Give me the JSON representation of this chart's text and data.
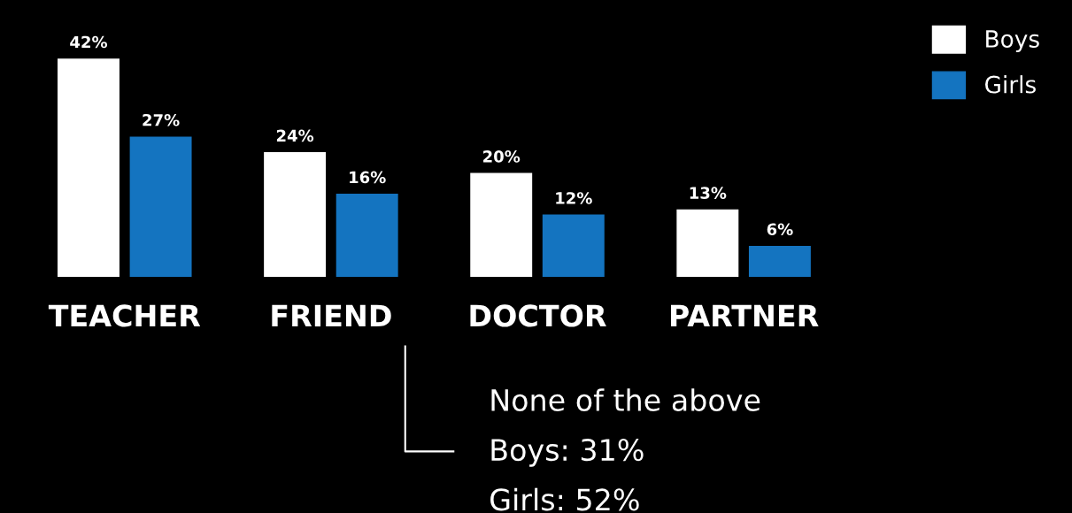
{
  "chart_data": {
    "type": "bar",
    "categories": [
      "TEACHER",
      "FRIEND",
      "DOCTOR",
      "PARTNER"
    ],
    "series": [
      {
        "name": "Boys",
        "color": "#ffffff",
        "values": [
          42,
          24,
          20,
          13
        ],
        "value_labels": [
          "42%",
          "24%",
          "20%",
          "13%"
        ]
      },
      {
        "name": "Girls",
        "color": "#1474c0",
        "values": [
          27,
          16,
          12,
          6
        ],
        "value_labels": [
          "27%",
          "16%",
          "12%",
          "6%"
        ]
      }
    ],
    "legend": "top right",
    "grid": false,
    "annotations": [
      "None of the above",
      "Boys: 31%",
      "Girls: 52%"
    ]
  }
}
